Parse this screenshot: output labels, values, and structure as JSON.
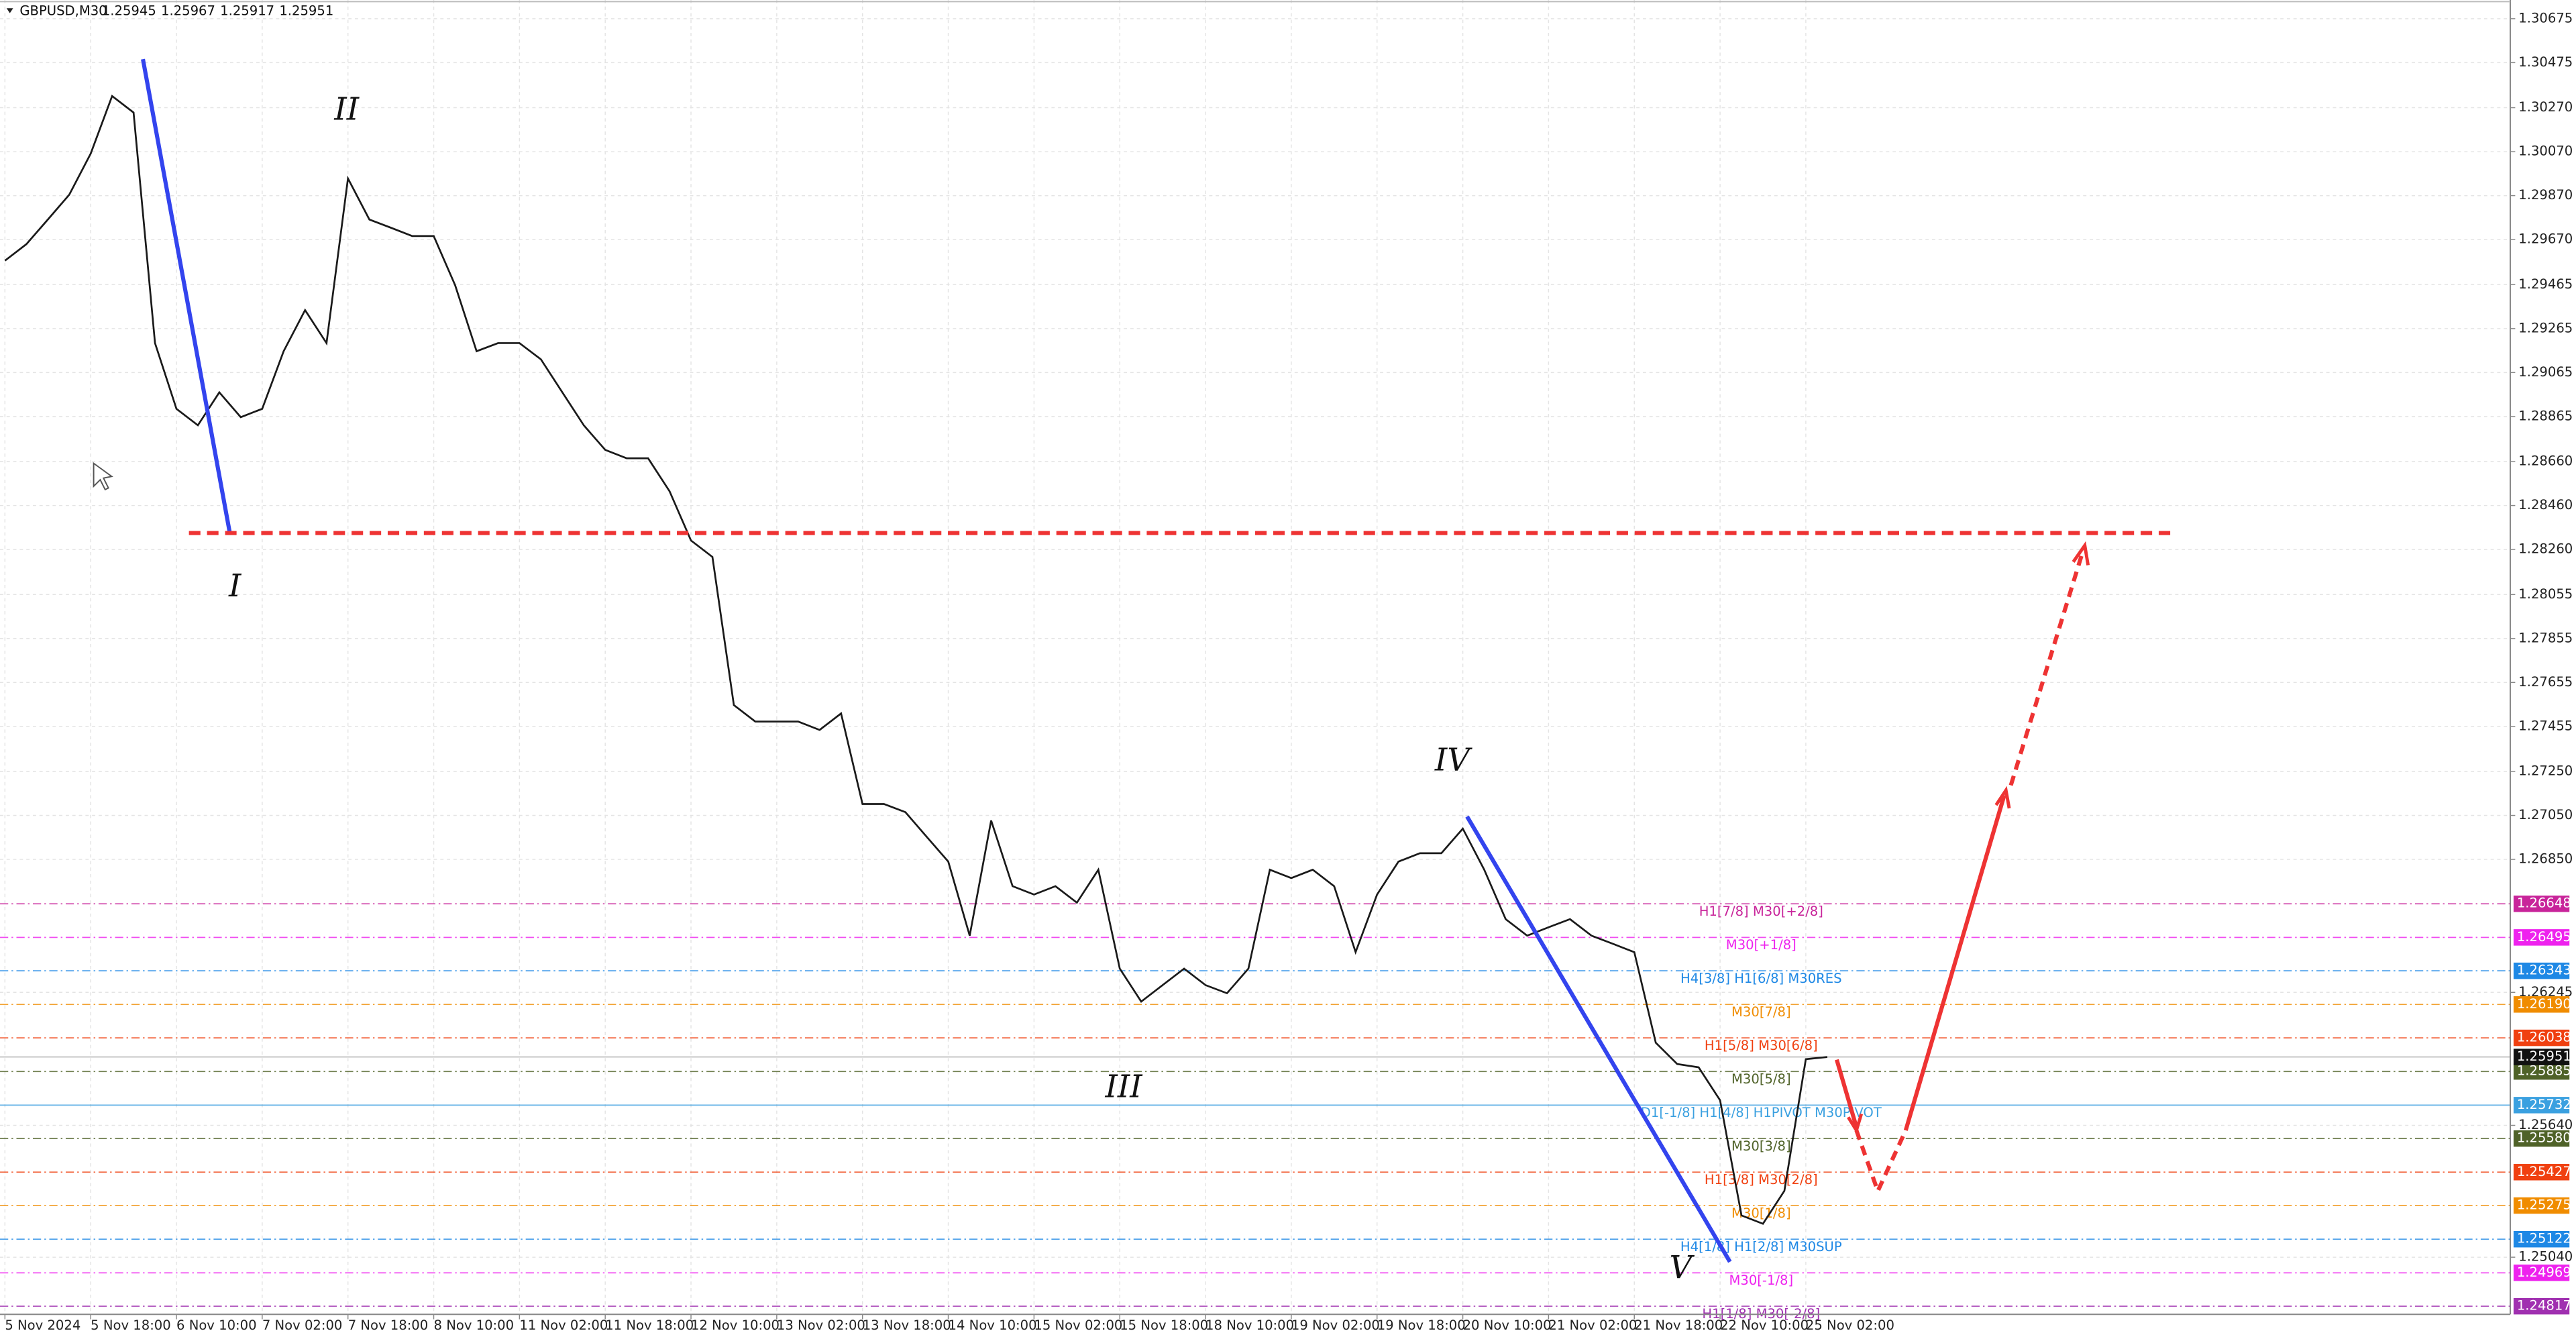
{
  "chart_data": {
    "type": "line",
    "title": "GBPUSD,M30",
    "ohlc": [
      1.25945,
      1.25967,
      1.25917,
      1.25951
    ],
    "categories": [
      "5 Nov 2024",
      null,
      null,
      null,
      "5 Nov 18:00",
      null,
      null,
      null,
      "6 Nov 10:00",
      null,
      null,
      null,
      "7 Nov 02:00",
      null,
      null,
      null,
      "7 Nov 18:00",
      null,
      null,
      null,
      "8 Nov 10:00",
      null,
      null,
      null,
      "11 Nov 02:00",
      null,
      null,
      null,
      "11 Nov 18:00",
      null,
      null,
      null,
      "12 Nov 10:00",
      null,
      null,
      null,
      "13 Nov 02:00",
      null,
      null,
      null,
      "13 Nov 18:00",
      null,
      null,
      null,
      "14 Nov 10:00",
      null,
      null,
      null,
      "15 Nov 02:00",
      null,
      null,
      null,
      "15 Nov 18:00",
      null,
      null,
      null,
      "18 Nov 10:00",
      null,
      null,
      null,
      "19 Nov 02:00",
      null,
      null,
      null,
      "19 Nov 18:00",
      null,
      null,
      null,
      "20 Nov 10:00",
      null,
      null,
      null,
      "21 Nov 02:00",
      null,
      null,
      null,
      "21 Nov 18:00",
      null,
      null,
      null,
      "22 Nov 10:00",
      null,
      null,
      null,
      "25 Nov 02:00",
      null
    ],
    "values": [
      1.29574,
      1.29649,
      1.29761,
      1.29874,
      1.30061,
      1.30323,
      1.30248,
      1.29199,
      1.289,
      1.28825,
      1.28975,
      1.28862,
      1.289,
      1.29162,
      1.29349,
      1.29199,
      1.29948,
      1.29761,
      1.29724,
      1.29686,
      1.29686,
      1.29462,
      1.29162,
      1.29199,
      1.29199,
      1.29125,
      1.28975,
      1.28825,
      1.28713,
      1.28675,
      1.28675,
      1.28525,
      1.28301,
      1.28226,
      1.27552,
      1.27477,
      1.27477,
      1.27477,
      1.27439,
      1.27514,
      1.27102,
      1.27102,
      1.27065,
      1.26952,
      1.2684,
      1.26503,
      1.27027,
      1.26728,
      1.2669,
      1.26728,
      1.26653,
      1.26803,
      1.26353,
      1.26203,
      1.26278,
      1.26353,
      1.26278,
      1.26241,
      1.26353,
      1.26803,
      1.26765,
      1.26803,
      1.26728,
      1.26428,
      1.2669,
      1.2684,
      1.26878,
      1.26878,
      1.2699,
      1.26803,
      1.26578,
      1.26503,
      1.26541,
      1.26578,
      1.26503,
      1.26466,
      1.26428,
      1.26016,
      1.25919,
      1.25904,
      1.25754,
      1.2523,
      1.25192,
      1.25342,
      1.25941,
      1.25951
    ],
    "color": "#1a1a1a",
    "ylim": [
      1.2478,
      1.3076
    ],
    "yticks": [
      1.30675,
      1.30475,
      {
        "value": 1.3027,
        "label": "1.30270"
      },
      {
        "value": 1.3007,
        "label": "1.30070"
      },
      {
        "value": 1.2987,
        "label": "1.29870"
      },
      {
        "value": 1.2967,
        "label": "1.29670"
      },
      1.29465,
      1.29265,
      1.29065,
      1.28865,
      {
        "value": 1.2866,
        "label": "1.28660"
      },
      {
        "value": 1.2846,
        "label": "1.28460"
      },
      {
        "value": 1.2826,
        "label": "1.28260"
      },
      1.28055,
      1.27855,
      1.27655,
      1.27455,
      {
        "value": 1.2725,
        "label": "1.27250"
      },
      {
        "value": 1.2705,
        "label": "1.27050"
      },
      {
        "value": 1.2685,
        "label": "1.26850"
      },
      1.26245,
      {
        "value": 1.2564,
        "label": "1.25640"
      },
      {
        "value": 1.2504,
        "label": "1.25040"
      }
    ],
    "grid": true,
    "levels": [
      {
        "name": "H1[7/8] M30[+2/8]",
        "value": 1.26648,
        "value_label": "1.26648",
        "color": "#c8249a"
      },
      {
        "name": "M30[+1/8]",
        "value": 1.26495,
        "value_label": "1.26495",
        "color": "#ee22ee"
      },
      {
        "name": "H4[3/8] H1[6/8] M30RES",
        "value": 1.26343,
        "value_label": "1.26343",
        "color": "#1e88e5"
      },
      {
        "name": "M30[7/8]",
        "value": 1.2619,
        "value_label": "1.26190",
        "color": "#f08c00"
      },
      {
        "name": "H1[5/8] M30[6/8]",
        "value": 1.26038,
        "value_label": "1.26038",
        "color": "#f04010"
      },
      {
        "name": "M30[5/8]",
        "value": 1.25885,
        "value_label": "1.25885",
        "color": "#4f6228"
      },
      {
        "name": "D1[-1/8] H1[4/8] H1PIVOT M30PIVOT",
        "value": 1.25732,
        "value_label": "1.25732",
        "color": "#3aa0e0"
      },
      {
        "name": "M30[3/8]",
        "value": 1.2558,
        "value_label": "1.25580",
        "color": "#4f6228"
      },
      {
        "name": "H1[3/8] M30[2/8]",
        "value": 1.25427,
        "value_label": "1.25427",
        "color": "#f04010"
      },
      {
        "name": "M30[1/8]",
        "value": 1.25275,
        "value_label": "1.25275",
        "color": "#f08c00"
      },
      {
        "name": "H4[1/8] H1[2/8] M30SUP",
        "value": 1.25122,
        "value_label": "1.25122",
        "color": "#1e88e5"
      },
      {
        "name": "M30[-1/8]",
        "value": 1.24969,
        "value_label": "1.24969",
        "color": "#ee22ee"
      },
      {
        "name": "H1[1/8] M30[-2/8]",
        "value": 1.24817,
        "value_label": "1.24817",
        "color": "#a030b0"
      }
    ],
    "current_price": 1.25951,
    "resistance": 1.28335,
    "annotations": [
      "I",
      "II",
      "III",
      "IV",
      "V"
    ]
  }
}
